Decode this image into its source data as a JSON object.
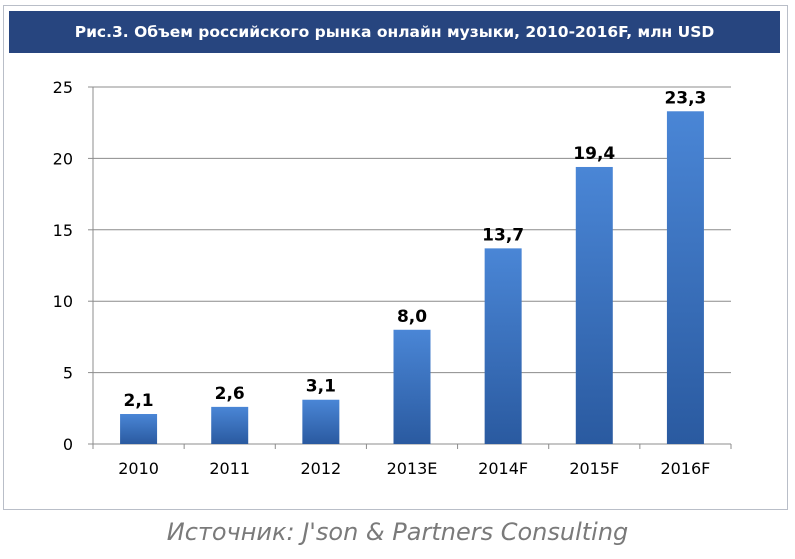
{
  "title": "Рис.3. Объем российского рынка онлайн музыки, 2010-2016F, млн USD",
  "source": "Источник: J'son & Partners Consulting",
  "colors": {
    "header_bg": "#27457f",
    "bar_top": "#4a86d6",
    "bar_bottom": "#2a5aa0"
  },
  "chart_data": {
    "type": "bar",
    "categories": [
      "2010",
      "2011",
      "2012",
      "2013E",
      "2014F",
      "2015F",
      "2016F"
    ],
    "values": [
      2.1,
      2.6,
      3.1,
      8.0,
      13.7,
      19.4,
      23.3
    ],
    "data_labels": [
      "2,1",
      "2,6",
      "3,1",
      "8,0",
      "13,7",
      "19,4",
      "23,3"
    ],
    "yticks": [
      0,
      5,
      10,
      15,
      20,
      25
    ],
    "ylim": [
      0,
      25
    ],
    "grid": true,
    "legend": "none"
  }
}
